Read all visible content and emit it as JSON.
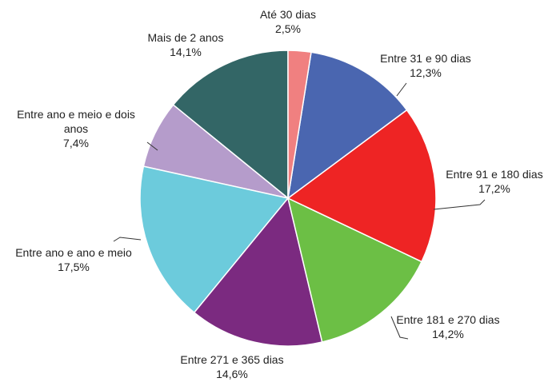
{
  "chart_data": {
    "type": "pie",
    "categories": [
      "Até 30 dias",
      "Entre 31 e 90 dias",
      "Entre 91 e 180 dias",
      "Entre 181 e 270 dias",
      "Entre 271 e 365 dias",
      "Entre ano e ano e meio",
      "Entre ano e meio e dois anos",
      "Mais de 2 anos"
    ],
    "values": [
      2.5,
      12.3,
      17.2,
      14.2,
      14.6,
      17.5,
      7.4,
      14.1
    ],
    "value_labels": [
      "2,5%",
      "12,3%",
      "17,2%",
      "14,2%",
      "14,6%",
      "17,5%",
      "7,4%",
      "14,1%"
    ],
    "colors": [
      "#f08080",
      "#4a66b0",
      "#ee2424",
      "#6cbf45",
      "#7b2a80",
      "#6ccbdc",
      "#b59ccb",
      "#336666"
    ]
  }
}
